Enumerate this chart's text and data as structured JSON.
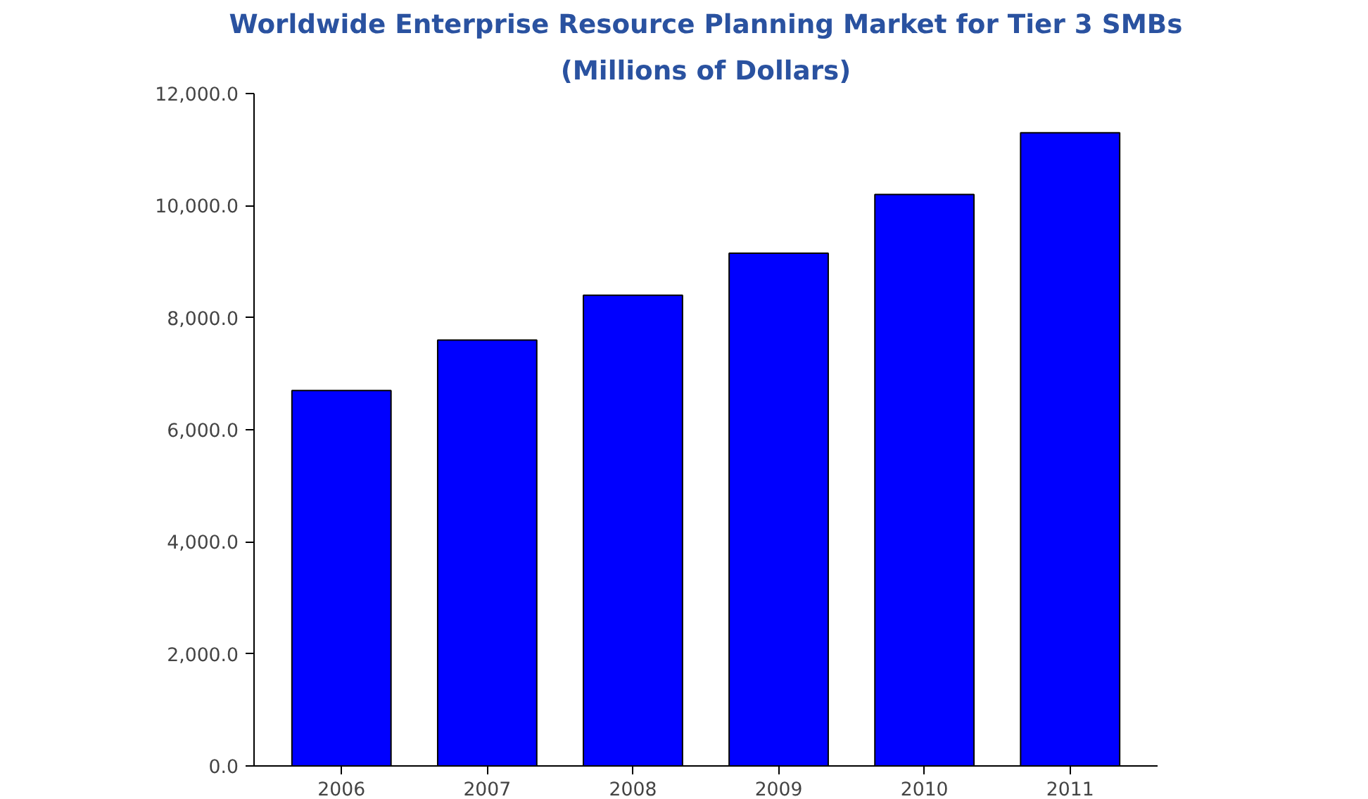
{
  "chart_data": {
    "type": "bar",
    "title": "Worldwide Enterprise Resource Planning Market for Tier 3 SMBs",
    "subtitle": "(Millions of Dollars)",
    "categories": [
      "2006",
      "2007",
      "2008",
      "2009",
      "2010",
      "2011"
    ],
    "values": [
      6700,
      7600,
      8400,
      9150,
      10200,
      11300
    ],
    "color": "#0000ff",
    "ylim": [
      0,
      12000
    ],
    "yticks": [
      {
        "value": 0,
        "label": "0.0"
      },
      {
        "value": 2000,
        "label": "2,000.0"
      },
      {
        "value": 4000,
        "label": "4,000.0"
      },
      {
        "value": 6000,
        "label": "6,000.0"
      },
      {
        "value": 8000,
        "label": "8,000.0"
      },
      {
        "value": 10000,
        "label": "10,000.0"
      },
      {
        "value": 12000,
        "label": "12,000.0"
      }
    ],
    "grid": false
  }
}
